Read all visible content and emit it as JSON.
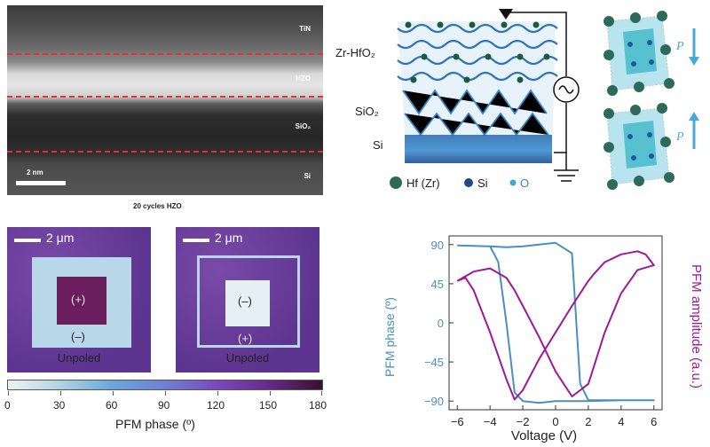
{
  "tem": {
    "layers": [
      "TiN",
      "HZO",
      "SiO₂",
      "Si"
    ],
    "scale": "2 nm",
    "caption": "20 cycles HZO"
  },
  "structure": {
    "labels": [
      "Zr-HfO₂",
      "SiO₂",
      "Si"
    ],
    "legend": [
      "Hf (Zr)",
      "Si",
      "O"
    ],
    "polarization": [
      "P",
      "P"
    ]
  },
  "pfm_maps": [
    {
      "scale": "2 μm",
      "inner": "(+)",
      "outer": "(–)",
      "label": "Unpoled"
    },
    {
      "scale": "2 μm",
      "inner": "(–)",
      "outer": "(+)",
      "label": "Unpoled"
    }
  ],
  "colorbar": {
    "ticks": [
      "0",
      "30",
      "60",
      "90",
      "120",
      "150",
      "180"
    ],
    "title": "PFM phase (º)"
  },
  "colors": {
    "phase": "#4a8fc0",
    "amplitude": "#a0189a",
    "dash": "#e53030"
  },
  "chart_data": {
    "type": "line",
    "xlabel": "Voltage (V)",
    "ylabel": "PFM phase (º)",
    "y2label": "PFM amplitude (a.u.)",
    "xlim": [
      -6.5,
      6.5
    ],
    "ylim": [
      -100,
      100
    ],
    "xticks": [
      -6,
      -4,
      -2,
      0,
      2,
      4,
      6
    ],
    "yticks": [
      90,
      45,
      0,
      -45,
      -90
    ],
    "series": [
      {
        "name": "PFM phase",
        "axis": "left",
        "x": [
          -6,
          -4,
          -3.5,
          -3,
          -2.5,
          -2,
          -1,
          0,
          1,
          2,
          4,
          6,
          6,
          4,
          2,
          1.5,
          1,
          0,
          -1,
          -2,
          -3,
          -4,
          -6
        ],
        "y": [
          89,
          88,
          70,
          0,
          -80,
          -90,
          -92,
          -90,
          -90,
          -90,
          -89,
          -89,
          -89,
          -89,
          -89,
          -70,
          80,
          92,
          90,
          88,
          87,
          88,
          89
        ]
      },
      {
        "name": "PFM amplitude",
        "axis": "right",
        "x": [
          -6,
          -5.5,
          -5,
          -4,
          -3,
          -2.5,
          -2,
          -1,
          0,
          1,
          2,
          2.3,
          3,
          4,
          5,
          5.5,
          6,
          6,
          5,
          4,
          3,
          2,
          1,
          0,
          -1,
          -2,
          -2.5,
          -3,
          -4,
          -5,
          -6
        ],
        "y": [
          0.78,
          0.8,
          0.72,
          0.45,
          0.15,
          0.02,
          0.08,
          0.28,
          0.45,
          0.62,
          0.78,
          0.82,
          0.9,
          0.95,
          0.97,
          0.95,
          0.88,
          0.88,
          0.85,
          0.7,
          0.45,
          0.12,
          0.04,
          0.2,
          0.42,
          0.62,
          0.72,
          0.8,
          0.86,
          0.84,
          0.78
        ]
      }
    ]
  }
}
